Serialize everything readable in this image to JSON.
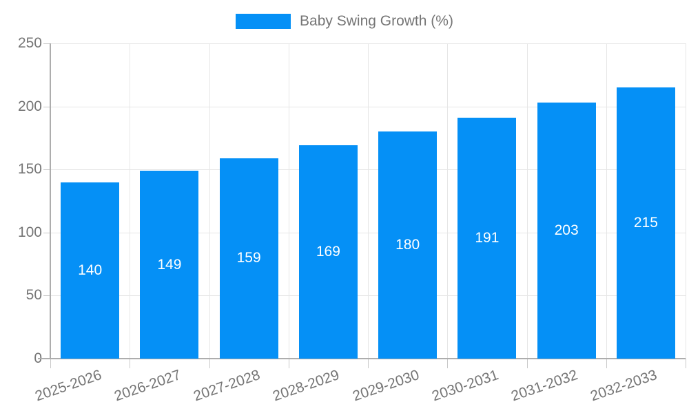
{
  "colors": {
    "bar": "#0590f6",
    "grid": "#e6e6e6",
    "axis": "#adadad",
    "tick": "#c9c9c9",
    "text": "#757575",
    "bar_label": "#ffffff",
    "background": "#ffffff"
  },
  "legend": {
    "swatch_color": "#0590f6",
    "label": "Baby Swing Growth (%)",
    "position": "top-center"
  },
  "chart_data": {
    "type": "bar",
    "title": "",
    "legend": "Baby Swing Growth (%)",
    "categories": [
      "2025-2026",
      "2026-2027",
      "2027-2028",
      "2028-2029",
      "2029-2030",
      "2030-2031",
      "2031-2032",
      "2032-2033"
    ],
    "values": [
      140,
      149,
      159,
      169,
      180,
      191,
      203,
      215
    ],
    "xlabel": "",
    "ylabel": "",
    "ylim": [
      0,
      250
    ],
    "yticks": [
      0,
      50,
      100,
      150,
      200,
      250
    ],
    "grid": "on",
    "value_labels_position": "inside-center",
    "x_tick_label_rotation_deg": -19
  }
}
